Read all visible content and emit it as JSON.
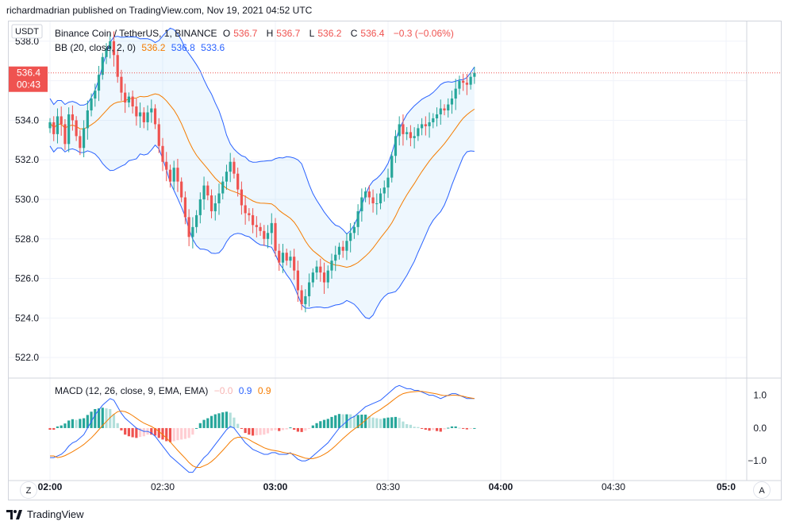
{
  "caption": "richardmadrian published on TradingView.com, Nov 19, 2021 04:52 UTC",
  "brand": "TradingView",
  "currency_badge": "USDT",
  "symbol": {
    "name": "Binance Coin / TetherUS, 1, BINANCE",
    "o_label": "O",
    "o": "536.7",
    "h_label": "H",
    "h": "536.7",
    "l_label": "L",
    "l": "536.2",
    "c_label": "C",
    "c": "536.4",
    "change": "−0.3 (−0.06%)"
  },
  "bb": {
    "label": "BB (20, close, 2, 0)",
    "basis": "536.2",
    "upper": "536.8",
    "lower": "533.6"
  },
  "macd": {
    "label": "MACD (12, 26, close, 9, EMA, EMA)",
    "hist": "−0.0",
    "macd": "0.9",
    "signal": "0.9"
  },
  "price_tag": {
    "value": "536.4",
    "countdown": "00:43"
  },
  "buttons": {
    "z": "Z",
    "a": "A"
  },
  "colors": {
    "up": "#26a69a",
    "down": "#ef5350",
    "bb_band": "#2962ff",
    "bb_basis": "#f57c00",
    "macd_line": "#2962ff",
    "signal_line": "#f57c00"
  },
  "chart_data": {
    "type": "candlestick",
    "price_axis": {
      "ticks": [
        "538.0",
        "536.0",
        "534.0",
        "532.0",
        "530.0",
        "528.0",
        "526.0",
        "524.0",
        "522.0"
      ],
      "range": [
        521.0,
        539.0
      ]
    },
    "macd_axis": {
      "ticks": [
        "1.0",
        "0.0",
        "−1.0"
      ],
      "range": [
        -1.6,
        1.5
      ]
    },
    "time_axis": {
      "ticks": [
        "02:00",
        "02:30",
        "03:00",
        "03:30",
        "04:00",
        "04:30",
        "05:0"
      ],
      "bold": [
        "02:00",
        "03:00",
        "04:00",
        "05:0"
      ]
    },
    "start_minute": 0,
    "bars_per_tick": 30,
    "close": [
      533.9,
      533.3,
      534.2,
      533.8,
      532.8,
      534.3,
      534.0,
      533.2,
      532.6,
      533.6,
      534.5,
      535.1,
      535.5,
      536.3,
      537.2,
      537.6,
      538.0,
      537.3,
      536.2,
      535.4,
      534.9,
      535.2,
      534.7,
      534.2,
      534.4,
      533.9,
      534.4,
      534.6,
      533.8,
      532.7,
      531.9,
      531.5,
      530.9,
      531.6,
      530.9,
      530.1,
      529.1,
      528.1,
      528.6,
      529.2,
      530.0,
      530.7,
      530.2,
      529.4,
      529.8,
      530.3,
      530.9,
      531.4,
      531.9,
      531.3,
      530.5,
      529.7,
      529.3,
      529.2,
      528.7,
      528.6,
      528.4,
      528.0,
      528.3,
      528.8,
      527.4,
      526.8,
      527.3,
      526.9,
      527.1,
      526.4,
      525.4,
      524.7,
      525.1,
      525.8,
      526.3,
      526.6,
      526.3,
      525.8,
      526.4,
      526.9,
      527.2,
      527.6,
      527.4,
      527.9,
      528.3,
      528.6,
      529.4,
      530.1,
      530.4,
      530.1,
      529.8,
      529.8,
      530.3,
      530.6,
      531.1,
      532.2,
      533.2,
      533.8,
      533.3,
      533.4,
      533.1,
      533.2,
      533.6,
      533.8,
      533.7,
      533.9,
      534.1,
      534.3,
      534.6,
      534.5,
      534.8,
      535.1,
      535.6,
      536.0,
      535.9,
      535.8,
      536.2,
      536.4
    ],
    "macd_line": [
      -0.9,
      -0.9,
      -0.85,
      -0.8,
      -0.7,
      -0.55,
      -0.45,
      -0.4,
      -0.3,
      -0.2,
      0.0,
      0.2,
      0.4,
      0.55,
      0.7,
      0.8,
      0.9,
      0.85,
      0.65,
      0.45,
      0.3,
      0.2,
      0.1,
      0.0,
      -0.05,
      -0.1,
      -0.1,
      -0.15,
      -0.25,
      -0.4,
      -0.55,
      -0.7,
      -0.85,
      -0.95,
      -1.05,
      -1.15,
      -1.25,
      -1.35,
      -1.35,
      -1.2,
      -1.05,
      -0.9,
      -0.8,
      -0.65,
      -0.5,
      -0.35,
      -0.2,
      -0.05,
      0.05,
      0.0,
      -0.15,
      -0.3,
      -0.45,
      -0.55,
      -0.65,
      -0.7,
      -0.75,
      -0.8,
      -0.8,
      -0.75,
      -0.75,
      -0.8,
      -0.8,
      -0.8,
      -0.75,
      -0.85,
      -0.95,
      -1.0,
      -1.0,
      -0.95,
      -0.85,
      -0.75,
      -0.65,
      -0.55,
      -0.45,
      -0.3,
      -0.15,
      0.0,
      0.1,
      0.2,
      0.3,
      0.35,
      0.45,
      0.55,
      0.65,
      0.7,
      0.75,
      0.8,
      0.85,
      0.95,
      1.05,
      1.15,
      1.25,
      1.3,
      1.25,
      1.2,
      1.2,
      1.15,
      1.15,
      1.1,
      1.05,
      1.0,
      1.0,
      0.95,
      0.9,
      0.95,
      1.0,
      1.05,
      1.05,
      1.0,
      0.95,
      0.9,
      0.9,
      0.9
    ],
    "signal_line": [
      -0.85,
      -0.85,
      -0.9,
      -0.88,
      -0.84,
      -0.78,
      -0.72,
      -0.65,
      -0.58,
      -0.5,
      -0.4,
      -0.3,
      -0.18,
      -0.05,
      0.08,
      0.2,
      0.32,
      0.42,
      0.5,
      0.52,
      0.5,
      0.45,
      0.38,
      0.3,
      0.22,
      0.15,
      0.1,
      0.05,
      -0.02,
      -0.1,
      -0.2,
      -0.3,
      -0.42,
      -0.55,
      -0.68,
      -0.8,
      -0.92,
      -1.05,
      -1.15,
      -1.2,
      -1.2,
      -1.15,
      -1.1,
      -1.02,
      -0.92,
      -0.8,
      -0.68,
      -0.55,
      -0.42,
      -0.32,
      -0.28,
      -0.28,
      -0.3,
      -0.35,
      -0.42,
      -0.48,
      -0.54,
      -0.6,
      -0.64,
      -0.67,
      -0.69,
      -0.71,
      -0.74,
      -0.76,
      -0.77,
      -0.8,
      -0.84,
      -0.88,
      -0.92,
      -0.93,
      -0.93,
      -0.9,
      -0.86,
      -0.8,
      -0.73,
      -0.64,
      -0.54,
      -0.43,
      -0.32,
      -0.22,
      -0.12,
      -0.03,
      0.05,
      0.14,
      0.24,
      0.34,
      0.43,
      0.5,
      0.57,
      0.65,
      0.73,
      0.82,
      0.91,
      0.99,
      1.05,
      1.08,
      1.1,
      1.11,
      1.12,
      1.12,
      1.1,
      1.08,
      1.06,
      1.04,
      1.01,
      0.99,
      0.99,
      1.0,
      1.0,
      0.99,
      0.97,
      0.94,
      0.92,
      0.9
    ]
  }
}
